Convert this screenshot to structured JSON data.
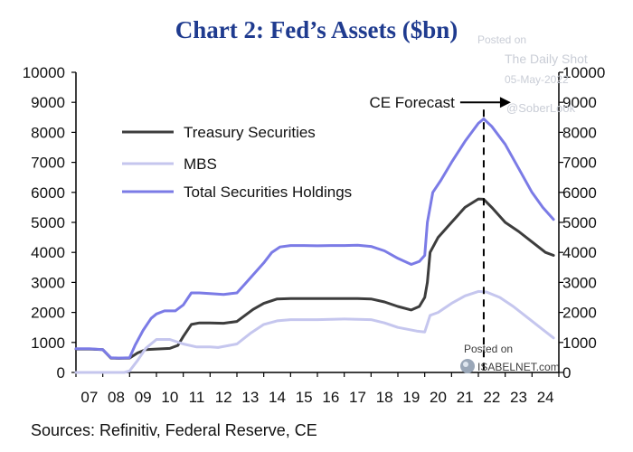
{
  "chart_data": {
    "type": "line",
    "title": "Chart 2: Fed’s Assets ($bn)",
    "x_ticks": [
      "07",
      "08",
      "09",
      "10",
      "11",
      "12",
      "13",
      "14",
      "15",
      "16",
      "17",
      "18",
      "19",
      "20",
      "21",
      "22",
      "23",
      "24"
    ],
    "ylim": [
      0,
      10000
    ],
    "y_ticks": [
      0,
      1000,
      2000,
      3000,
      4000,
      5000,
      6000,
      7000,
      8000,
      9000,
      10000
    ],
    "y_tick_labels": [
      "0",
      "1000",
      "2000",
      "3000",
      "4000",
      "5000",
      "6000",
      "7000",
      "8000",
      "9000",
      "10000"
    ],
    "xlim": [
      2007,
      2025
    ],
    "legend_position": "upper-left",
    "series": [
      {
        "name": "Treasury Securities",
        "color": "#3d3d3d",
        "points": [
          [
            2007.0,
            780
          ],
          [
            2007.5,
            780
          ],
          [
            2008.0,
            760
          ],
          [
            2008.3,
            480
          ],
          [
            2008.6,
            470
          ],
          [
            2009.0,
            480
          ],
          [
            2009.3,
            650
          ],
          [
            2009.6,
            760
          ],
          [
            2010.0,
            780
          ],
          [
            2010.5,
            800
          ],
          [
            2010.8,
            900
          ],
          [
            2011.0,
            1200
          ],
          [
            2011.3,
            1600
          ],
          [
            2011.6,
            1650
          ],
          [
            2012.0,
            1650
          ],
          [
            2012.5,
            1640
          ],
          [
            2013.0,
            1700
          ],
          [
            2013.3,
            1900
          ],
          [
            2013.6,
            2100
          ],
          [
            2014.0,
            2300
          ],
          [
            2014.5,
            2450
          ],
          [
            2015.0,
            2460
          ],
          [
            2015.5,
            2460
          ],
          [
            2016.0,
            2460
          ],
          [
            2016.5,
            2460
          ],
          [
            2017.0,
            2460
          ],
          [
            2017.5,
            2460
          ],
          [
            2018.0,
            2450
          ],
          [
            2018.5,
            2350
          ],
          [
            2019.0,
            2200
          ],
          [
            2019.5,
            2080
          ],
          [
            2019.8,
            2200
          ],
          [
            2020.0,
            2500
          ],
          [
            2020.1,
            3000
          ],
          [
            2020.2,
            4000
          ],
          [
            2020.5,
            4500
          ],
          [
            2021.0,
            5000
          ],
          [
            2021.5,
            5500
          ],
          [
            2022.0,
            5780
          ],
          [
            2022.2,
            5770
          ],
          [
            2022.5,
            5500
          ],
          [
            2023.0,
            5000
          ],
          [
            2023.5,
            4700
          ],
          [
            2024.0,
            4350
          ],
          [
            2024.5,
            4000
          ],
          [
            2024.8,
            3900
          ]
        ]
      },
      {
        "name": "MBS",
        "color": "#c5c6ee",
        "points": [
          [
            2007.0,
            0
          ],
          [
            2008.0,
            0
          ],
          [
            2008.8,
            0
          ],
          [
            2009.0,
            50
          ],
          [
            2009.3,
            400
          ],
          [
            2009.6,
            800
          ],
          [
            2010.0,
            1100
          ],
          [
            2010.5,
            1100
          ],
          [
            2011.0,
            950
          ],
          [
            2011.5,
            850
          ],
          [
            2012.0,
            850
          ],
          [
            2012.3,
            830
          ],
          [
            2013.0,
            950
          ],
          [
            2013.5,
            1300
          ],
          [
            2014.0,
            1600
          ],
          [
            2014.5,
            1720
          ],
          [
            2015.0,
            1760
          ],
          [
            2016.0,
            1760
          ],
          [
            2017.0,
            1780
          ],
          [
            2018.0,
            1760
          ],
          [
            2018.5,
            1650
          ],
          [
            2019.0,
            1500
          ],
          [
            2019.7,
            1380
          ],
          [
            2020.0,
            1350
          ],
          [
            2020.2,
            1900
          ],
          [
            2020.5,
            2000
          ],
          [
            2021.0,
            2300
          ],
          [
            2021.5,
            2550
          ],
          [
            2022.0,
            2700
          ],
          [
            2022.3,
            2680
          ],
          [
            2022.8,
            2500
          ],
          [
            2023.3,
            2200
          ],
          [
            2023.8,
            1850
          ],
          [
            2024.3,
            1500
          ],
          [
            2024.8,
            1150
          ]
        ]
      },
      {
        "name": "Total Securities Holdings",
        "color": "#7b7be6",
        "points": [
          [
            2007.0,
            790
          ],
          [
            2007.5,
            790
          ],
          [
            2008.0,
            760
          ],
          [
            2008.3,
            490
          ],
          [
            2008.6,
            480
          ],
          [
            2009.0,
            490
          ],
          [
            2009.2,
            900
          ],
          [
            2009.5,
            1400
          ],
          [
            2009.8,
            1800
          ],
          [
            2010.0,
            1950
          ],
          [
            2010.3,
            2050
          ],
          [
            2010.7,
            2050
          ],
          [
            2011.0,
            2250
          ],
          [
            2011.3,
            2650
          ],
          [
            2011.6,
            2650
          ],
          [
            2012.0,
            2630
          ],
          [
            2012.5,
            2600
          ],
          [
            2013.0,
            2650
          ],
          [
            2013.3,
            2950
          ],
          [
            2013.6,
            3250
          ],
          [
            2014.0,
            3650
          ],
          [
            2014.3,
            4000
          ],
          [
            2014.6,
            4180
          ],
          [
            2015.0,
            4230
          ],
          [
            2015.5,
            4230
          ],
          [
            2016.0,
            4220
          ],
          [
            2016.5,
            4230
          ],
          [
            2017.0,
            4230
          ],
          [
            2017.5,
            4240
          ],
          [
            2018.0,
            4200
          ],
          [
            2018.5,
            4050
          ],
          [
            2019.0,
            3800
          ],
          [
            2019.5,
            3600
          ],
          [
            2019.8,
            3700
          ],
          [
            2020.0,
            3900
          ],
          [
            2020.1,
            5000
          ],
          [
            2020.3,
            6000
          ],
          [
            2020.6,
            6400
          ],
          [
            2021.0,
            7000
          ],
          [
            2021.5,
            7700
          ],
          [
            2022.0,
            8300
          ],
          [
            2022.2,
            8450
          ],
          [
            2022.5,
            8200
          ],
          [
            2023.0,
            7600
          ],
          [
            2023.5,
            6800
          ],
          [
            2024.0,
            6000
          ],
          [
            2024.4,
            5500
          ],
          [
            2024.8,
            5100
          ]
        ]
      }
    ],
    "annotations": [
      {
        "text": "CE Forecast",
        "x": 2022.2,
        "y": 9000
      }
    ],
    "forecast_line_x": 2022.2,
    "source": "Sources: Refinitiv, Federal Reserve, CE"
  },
  "watermarks": {
    "posted_on_top": "Posted on",
    "daily_shot": "The Daily Shot",
    "date": "05-May-2022",
    "handle": "@SoberLook",
    "posted_on_bottom": "Posted on",
    "isabelnet": "ISABELNET.com"
  }
}
